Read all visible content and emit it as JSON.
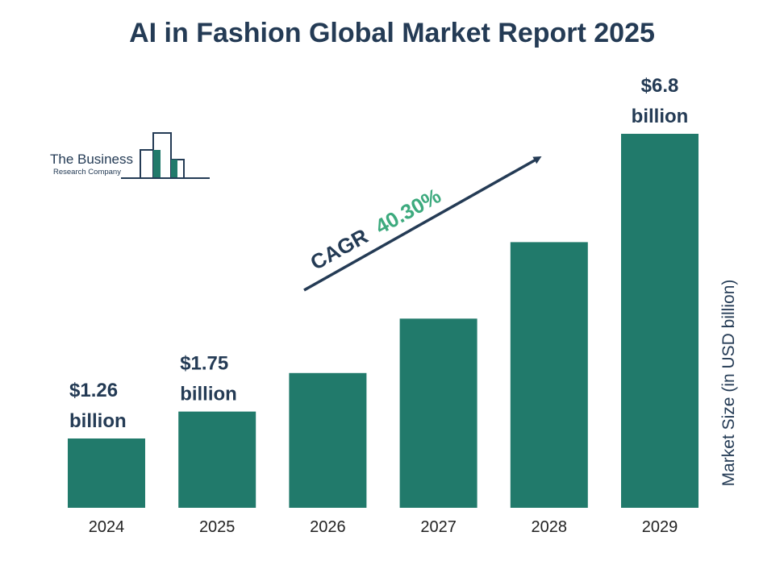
{
  "chart_data": {
    "type": "bar",
    "title": "AI in Fashion Global Market Report 2025",
    "categories": [
      "2024",
      "2025",
      "2026",
      "2027",
      "2028",
      "2029"
    ],
    "values": [
      1.26,
      1.75,
      2.45,
      3.44,
      4.83,
      6.8
    ],
    "data_labels": [
      {
        "index": 0,
        "lines": [
          "$1.26",
          "billion"
        ]
      },
      {
        "index": 1,
        "lines": [
          "$1.75",
          "billion"
        ]
      },
      {
        "index": 5,
        "lines": [
          "$6.8",
          "billion"
        ]
      }
    ],
    "ylabel": "Market Size (in USD billion)",
    "xlabel": "",
    "ylim": [
      0,
      6.8
    ],
    "grid": false,
    "legend": "none",
    "annotation": {
      "cagr_label": "CAGR",
      "cagr_value": "40.30%"
    }
  },
  "logo": {
    "line1": "The Business",
    "line2": "Research Company"
  },
  "colors": {
    "bar": "#217a6b",
    "title": "#243b55",
    "label": "#243b55",
    "cagr_value": "#3daa7e",
    "axis_text": "#222222",
    "ylabel": "#243b55",
    "logo_accent": "#217a6b",
    "logo_line": "#243b55"
  }
}
